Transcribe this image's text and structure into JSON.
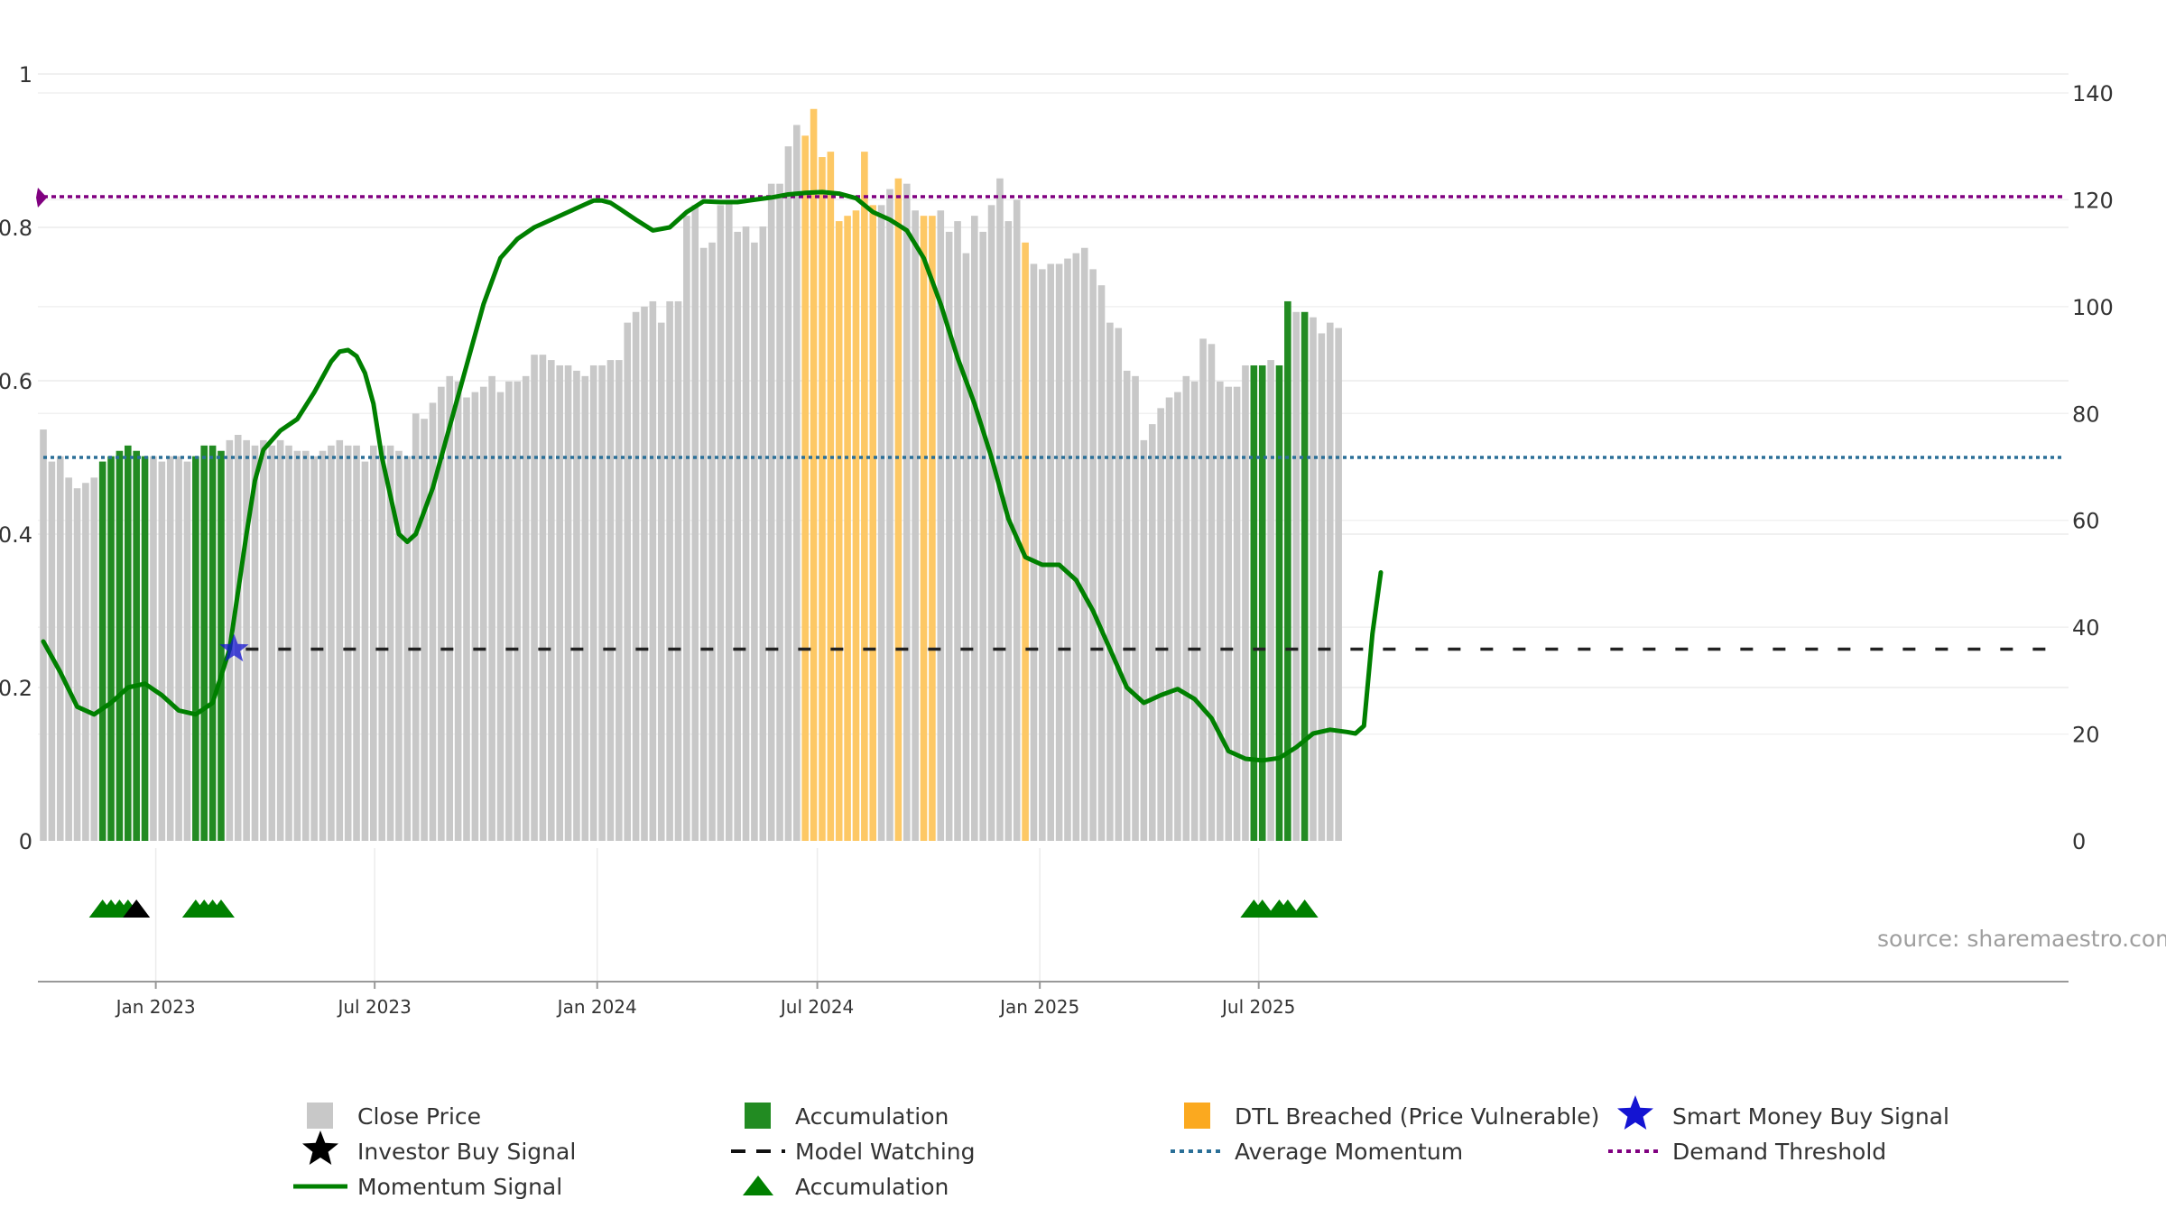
{
  "chart_data": {
    "type": "bar",
    "x_start": "2022-09-30",
    "x_step_days": 7,
    "x_range": [
      "2022-09-30",
      "2025-09-08"
    ],
    "x_ticks": [
      {
        "date": "2023-01-01",
        "label": "Jan 2023"
      },
      {
        "date": "2023-07-01",
        "label": "Jul 2023"
      },
      {
        "date": "2024-01-01",
        "label": "Jan 2024"
      },
      {
        "date": "2024-07-01",
        "label": "Jul 2024"
      },
      {
        "date": "2025-01-01",
        "label": "Jan 2025"
      },
      {
        "date": "2025-07-01",
        "label": "Jul 2025"
      }
    ],
    "left_axis": {
      "range": [
        0,
        1
      ],
      "tick_values": [
        0,
        0.2,
        0.4,
        0.6,
        0.8,
        1
      ],
      "tick_labels": [
        "0",
        "0.2",
        "0.4",
        "0.6",
        "0.8",
        "1"
      ]
    },
    "right_axis": {
      "range": [
        0,
        145
      ],
      "tick_values": [
        0,
        20,
        40,
        60,
        80,
        100,
        120,
        140
      ],
      "tick_labels": [
        "0",
        "20",
        "40",
        "60",
        "80",
        "100",
        "120",
        "140"
      ]
    },
    "close_price": [
      77,
      71,
      72,
      68,
      66,
      67,
      68,
      71,
      72,
      73,
      74,
      73,
      72,
      72,
      71,
      72,
      72,
      71,
      72,
      74,
      74,
      73,
      75,
      76,
      75,
      74,
      75,
      74,
      75,
      74,
      73,
      73,
      72,
      73,
      74,
      75,
      74,
      74,
      71,
      74,
      74,
      74,
      73,
      72,
      80,
      79,
      82,
      85,
      87,
      86,
      83,
      84,
      85,
      87,
      84,
      86,
      86,
      87,
      91,
      91,
      90,
      89,
      89,
      88,
      87,
      89,
      89,
      90,
      90,
      97,
      99,
      100,
      101,
      97,
      101,
      101,
      117,
      119,
      111,
      112,
      119,
      120,
      114,
      115,
      112,
      115,
      123,
      123,
      130,
      134,
      132,
      137,
      128,
      129,
      116,
      117,
      118,
      129,
      119,
      119,
      122,
      124,
      123,
      118,
      117,
      117,
      118,
      114,
      116,
      110,
      117,
      114,
      119,
      124,
      116,
      120,
      112,
      108,
      107,
      108,
      108,
      109,
      110,
      111,
      107,
      104,
      97,
      96,
      88,
      87,
      75,
      78,
      81,
      83,
      84,
      87,
      86,
      94,
      93,
      86,
      85,
      85,
      89,
      89,
      89,
      90,
      89,
      101,
      99,
      99,
      98,
      95,
      97,
      96
    ],
    "accumulation_bar_indices": [
      7,
      8,
      9,
      10,
      11,
      12,
      18,
      19,
      20,
      21,
      143,
      144,
      146,
      147,
      149
    ],
    "dtl_breached_bar_indices": [
      90,
      91,
      92,
      93,
      94,
      95,
      96,
      97,
      98,
      101,
      104,
      105,
      116
    ],
    "momentum_signal": [
      [
        0,
        0.26
      ],
      [
        2,
        0.22
      ],
      [
        4,
        0.175
      ],
      [
        6,
        0.165
      ],
      [
        8,
        0.18
      ],
      [
        10,
        0.2
      ],
      [
        12,
        0.205
      ],
      [
        14,
        0.19
      ],
      [
        16,
        0.17
      ],
      [
        18,
        0.165
      ],
      [
        20,
        0.18
      ],
      [
        22,
        0.25
      ],
      [
        24,
        0.4
      ],
      [
        25,
        0.47
      ],
      [
        26,
        0.51
      ],
      [
        28,
        0.535
      ],
      [
        30,
        0.55
      ],
      [
        32,
        0.585
      ],
      [
        34,
        0.625
      ],
      [
        35,
        0.638
      ],
      [
        36,
        0.64
      ],
      [
        37,
        0.632
      ],
      [
        38,
        0.61
      ],
      [
        39,
        0.57
      ],
      [
        40,
        0.5
      ],
      [
        42,
        0.4
      ],
      [
        43,
        0.39
      ],
      [
        44,
        0.4
      ],
      [
        46,
        0.46
      ],
      [
        48,
        0.54
      ],
      [
        50,
        0.62
      ],
      [
        52,
        0.7
      ],
      [
        54,
        0.76
      ],
      [
        56,
        0.785
      ],
      [
        58,
        0.8
      ],
      [
        60,
        0.81
      ],
      [
        62,
        0.82
      ],
      [
        64,
        0.83
      ],
      [
        65,
        0.835
      ],
      [
        66,
        0.835
      ],
      [
        67,
        0.832
      ],
      [
        68,
        0.825
      ],
      [
        70,
        0.81
      ],
      [
        72,
        0.796
      ],
      [
        74,
        0.8
      ],
      [
        76,
        0.82
      ],
      [
        78,
        0.834
      ],
      [
        80,
        0.833
      ],
      [
        82,
        0.833
      ],
      [
        84,
        0.836
      ],
      [
        86,
        0.839
      ],
      [
        88,
        0.843
      ],
      [
        90,
        0.845
      ],
      [
        92,
        0.846
      ],
      [
        94,
        0.844
      ],
      [
        96,
        0.838
      ],
      [
        98,
        0.82
      ],
      [
        100,
        0.81
      ],
      [
        102,
        0.796
      ],
      [
        104,
        0.76
      ],
      [
        106,
        0.7
      ],
      [
        108,
        0.63
      ],
      [
        110,
        0.57
      ],
      [
        112,
        0.5
      ],
      [
        114,
        0.42
      ],
      [
        116,
        0.37
      ],
      [
        118,
        0.36
      ],
      [
        120,
        0.36
      ],
      [
        122,
        0.34
      ],
      [
        124,
        0.3
      ],
      [
        126,
        0.25
      ],
      [
        128,
        0.2
      ],
      [
        130,
        0.18
      ],
      [
        132,
        0.19
      ],
      [
        134,
        0.198
      ],
      [
        136,
        0.185
      ],
      [
        138,
        0.16
      ],
      [
        140,
        0.117
      ],
      [
        142,
        0.107
      ],
      [
        144,
        0.105
      ],
      [
        146,
        0.108
      ],
      [
        148,
        0.122
      ],
      [
        150,
        0.14
      ],
      [
        152,
        0.145
      ],
      [
        154,
        0.142
      ],
      [
        155,
        0.14
      ],
      [
        156,
        0.15
      ],
      [
        157,
        0.27
      ],
      [
        158,
        0.35
      ]
    ],
    "average_momentum": 0.5,
    "demand_threshold": 0.84,
    "model_watching_level": 0.25,
    "model_watching_start_index": 22,
    "smart_money_buy_signal": {
      "index": 22,
      "value": 0.25
    },
    "accumulation_marker_indices": [
      7,
      8,
      9,
      10,
      18,
      19,
      20,
      21,
      143,
      144,
      146,
      147,
      149
    ],
    "investor_buy_marker_indices": [
      11
    ],
    "series_colors": {
      "close_price": "#c8c8c8",
      "accumulation": "#228b22",
      "dtl_breached": "#fdc865",
      "momentum": "#008000",
      "average_momentum": "#2a6f97",
      "demand_threshold": "#800080",
      "model_watching": "#222222",
      "smart_money": "#1414d2",
      "investor_buy": "#000000"
    },
    "legend": [
      {
        "key": "close_price",
        "label": "Close Price"
      },
      {
        "key": "accumulation",
        "label": "Accumulation"
      },
      {
        "key": "dtl",
        "label": "DTL Breached (Price Vulnerable)"
      },
      {
        "key": "smart_money",
        "label": "Smart Money Buy Signal"
      },
      {
        "key": "investor_buy",
        "label": "Investor Buy Signal"
      },
      {
        "key": "model_watching",
        "label": "Model Watching"
      },
      {
        "key": "average_momentum",
        "label": "Average Momentum"
      },
      {
        "key": "demand_threshold",
        "label": "Demand Threshold"
      },
      {
        "key": "momentum",
        "label": "Momentum Signal"
      },
      {
        "key": "accumulation_marker",
        "label": "Accumulation"
      }
    ],
    "legend_position": "bottom",
    "source": "source: sharemaestro.com"
  }
}
